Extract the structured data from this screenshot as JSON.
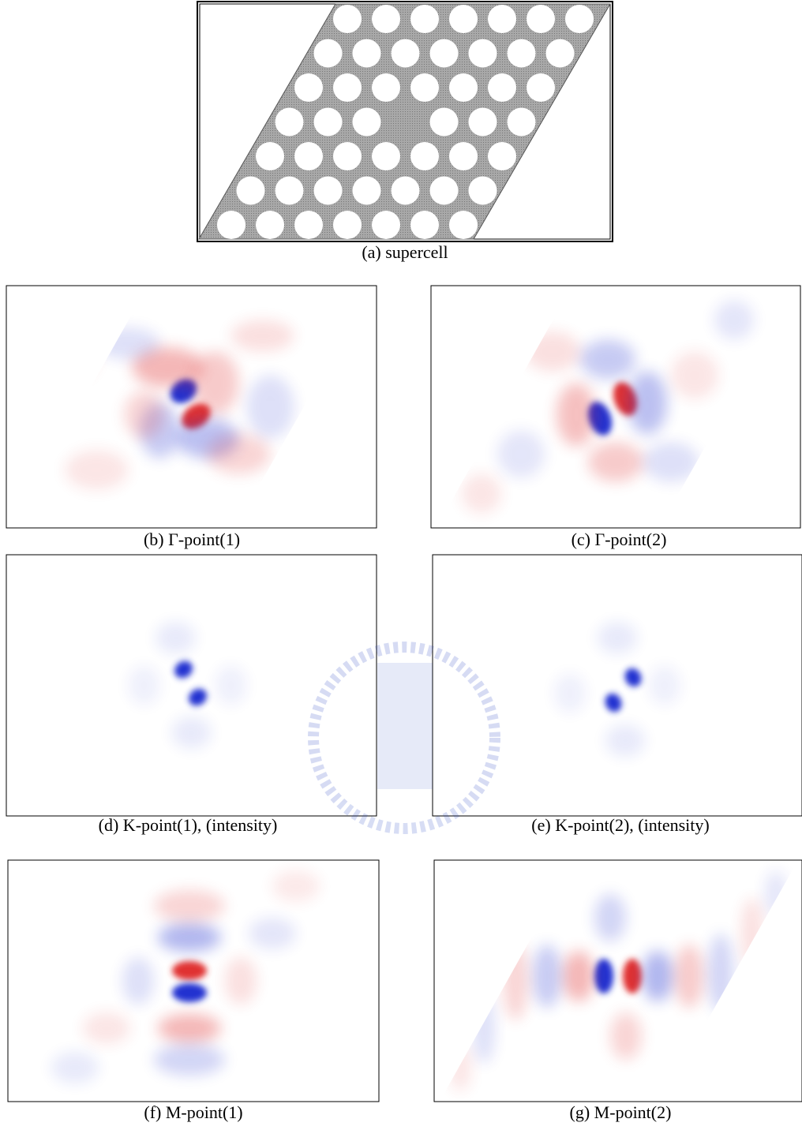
{
  "figure": {
    "captions": {
      "a": "(a) supercell",
      "b": "(b) Γ-point(1)",
      "c": "(c) Γ-point(2)",
      "d": "(d) K-point(1), (intensity)",
      "e": "(e) K-point(2), (intensity)",
      "f": "(f) M-point(1)",
      "g": "(g) M-point(2)"
    }
  }
}
